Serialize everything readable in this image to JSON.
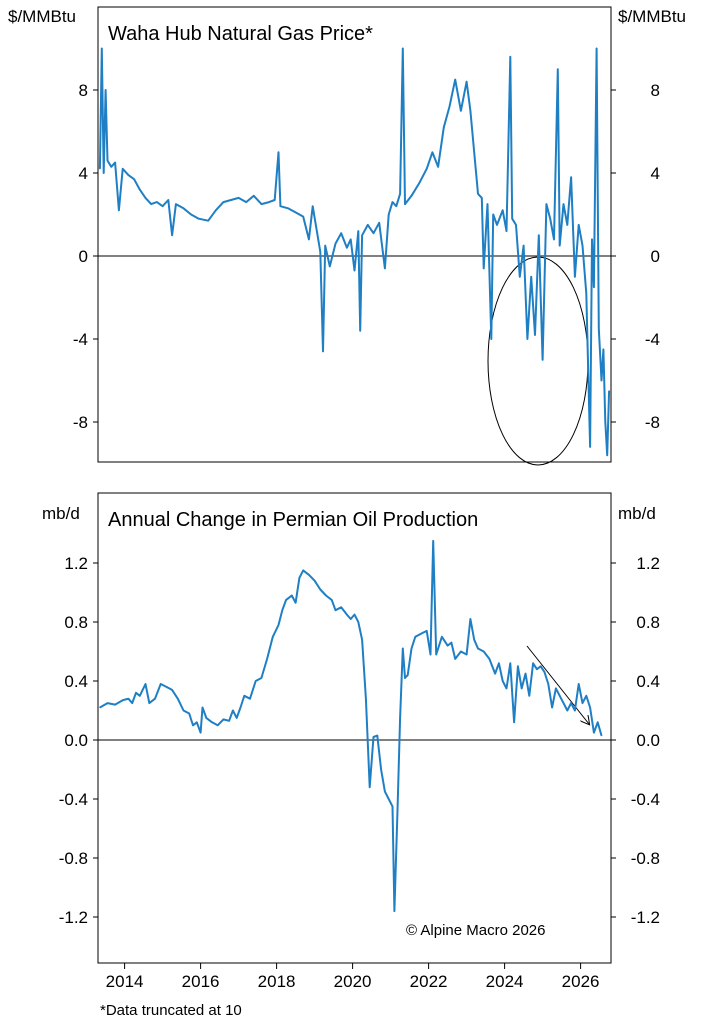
{
  "footnote": "*Data truncated at 10",
  "copyright": "© Alpine Macro 2026",
  "colors": {
    "series": "#1f7fc4",
    "axis": "#000000"
  },
  "chart_data": [
    {
      "type": "line",
      "title": "Waha Hub Natural Gas Price*",
      "unit_left": "$/MMBtu",
      "unit_right": "$/MMBtu",
      "ylim": [
        -10,
        10
      ],
      "xlim": [
        2013.3,
        2026.8
      ],
      "yticks": [
        8,
        4,
        0,
        -4,
        -8
      ],
      "ytick_labels": [
        "8",
        "4",
        "0",
        "-4",
        "-8"
      ],
      "zero_line": true,
      "annotation": "ellipse highlighting 2024-2026 negative prices",
      "series": [
        {
          "points": [
            [
              2013.35,
              4.2
            ],
            [
              2013.4,
              10.0
            ],
            [
              2013.45,
              4.0
            ],
            [
              2013.5,
              8.0
            ],
            [
              2013.55,
              4.6
            ],
            [
              2013.65,
              4.3
            ],
            [
              2013.75,
              4.5
            ],
            [
              2013.85,
              2.2
            ],
            [
              2013.95,
              4.2
            ],
            [
              2014.1,
              3.9
            ],
            [
              2014.25,
              3.7
            ],
            [
              2014.4,
              3.2
            ],
            [
              2014.55,
              2.8
            ],
            [
              2014.7,
              2.5
            ],
            [
              2014.85,
              2.6
            ],
            [
              2015.0,
              2.4
            ],
            [
              2015.15,
              2.7
            ],
            [
              2015.25,
              1.0
            ],
            [
              2015.35,
              2.5
            ],
            [
              2015.55,
              2.3
            ],
            [
              2015.75,
              2.0
            ],
            [
              2015.95,
              1.8
            ],
            [
              2016.2,
              1.7
            ],
            [
              2016.4,
              2.2
            ],
            [
              2016.6,
              2.6
            ],
            [
              2016.8,
              2.7
            ],
            [
              2017.0,
              2.8
            ],
            [
              2017.2,
              2.6
            ],
            [
              2017.4,
              2.9
            ],
            [
              2017.6,
              2.5
            ],
            [
              2017.8,
              2.6
            ],
            [
              2017.95,
              2.7
            ],
            [
              2018.05,
              5.0
            ],
            [
              2018.1,
              2.4
            ],
            [
              2018.3,
              2.3
            ],
            [
              2018.5,
              2.1
            ],
            [
              2018.7,
              1.9
            ],
            [
              2018.85,
              0.8
            ],
            [
              2018.95,
              2.4
            ],
            [
              2019.05,
              1.3
            ],
            [
              2019.15,
              0.2
            ],
            [
              2019.22,
              -4.6
            ],
            [
              2019.28,
              0.5
            ],
            [
              2019.4,
              -0.5
            ],
            [
              2019.55,
              0.6
            ],
            [
              2019.7,
              1.1
            ],
            [
              2019.85,
              0.4
            ],
            [
              2019.95,
              0.8
            ],
            [
              2020.05,
              -0.7
            ],
            [
              2020.15,
              1.2
            ],
            [
              2020.2,
              -3.6
            ],
            [
              2020.25,
              1.0
            ],
            [
              2020.4,
              1.5
            ],
            [
              2020.55,
              1.1
            ],
            [
              2020.7,
              1.6
            ],
            [
              2020.85,
              -0.6
            ],
            [
              2020.95,
              2.0
            ],
            [
              2021.05,
              2.6
            ],
            [
              2021.15,
              2.4
            ],
            [
              2021.25,
              3.0
            ],
            [
              2021.32,
              10.0
            ],
            [
              2021.38,
              2.5
            ],
            [
              2021.55,
              2.9
            ],
            [
              2021.75,
              3.5
            ],
            [
              2021.95,
              4.2
            ],
            [
              2022.1,
              5.0
            ],
            [
              2022.25,
              4.3
            ],
            [
              2022.4,
              6.2
            ],
            [
              2022.55,
              7.2
            ],
            [
              2022.7,
              8.5
            ],
            [
              2022.85,
              7.0
            ],
            [
              2023.0,
              8.4
            ],
            [
              2023.1,
              7.0
            ],
            [
              2023.2,
              5.0
            ],
            [
              2023.3,
              3.0
            ],
            [
              2023.4,
              2.8
            ],
            [
              2023.45,
              -0.6
            ],
            [
              2023.55,
              2.5
            ],
            [
              2023.65,
              -4.0
            ],
            [
              2023.7,
              2.0
            ],
            [
              2023.8,
              1.5
            ],
            [
              2023.95,
              2.2
            ],
            [
              2024.05,
              1.2
            ],
            [
              2024.15,
              9.6
            ],
            [
              2024.2,
              1.8
            ],
            [
              2024.3,
              1.5
            ],
            [
              2024.4,
              -1.0
            ],
            [
              2024.5,
              0.5
            ],
            [
              2024.6,
              -4.0
            ],
            [
              2024.7,
              -1.0
            ],
            [
              2024.8,
              -3.8
            ],
            [
              2024.9,
              1.0
            ],
            [
              2025.0,
              -5.0
            ],
            [
              2025.1,
              2.5
            ],
            [
              2025.2,
              1.8
            ],
            [
              2025.3,
              0.8
            ],
            [
              2025.4,
              9.0
            ],
            [
              2025.45,
              0.5
            ],
            [
              2025.55,
              2.5
            ],
            [
              2025.65,
              1.5
            ],
            [
              2025.75,
              3.8
            ],
            [
              2025.85,
              -1.0
            ],
            [
              2025.95,
              1.5
            ],
            [
              2026.05,
              0.5
            ],
            [
              2026.15,
              -1.8
            ],
            [
              2026.25,
              -9.2
            ],
            [
              2026.3,
              0.8
            ],
            [
              2026.35,
              -1.5
            ],
            [
              2026.42,
              10.0
            ],
            [
              2026.48,
              -3.5
            ],
            [
              2026.55,
              -6.0
            ],
            [
              2026.6,
              -4.5
            ],
            [
              2026.65,
              -8.0
            ],
            [
              2026.7,
              -9.6
            ],
            [
              2026.75,
              -6.5
            ]
          ]
        }
      ]
    },
    {
      "type": "line",
      "title": "Annual Change in Permian Oil Production",
      "unit_left": "mb/d",
      "unit_right": "mb/d",
      "ylim": [
        -1.5,
        1.5
      ],
      "xlim": [
        2013.3,
        2026.8
      ],
      "yticks": [
        1.2,
        0.8,
        0.4,
        0.0,
        -0.4,
        -0.8,
        -1.2
      ],
      "ytick_labels": [
        "1.2",
        "0.8",
        "0.4",
        "0.0",
        "-0.4",
        "-0.8",
        "-1.2"
      ],
      "x_tick_labels": [
        "2014",
        "2016",
        "2018",
        "2020",
        "2022",
        "2024",
        "2026"
      ],
      "x_ticks": [
        2014,
        2016,
        2018,
        2020,
        2022,
        2024,
        2026
      ],
      "zero_line": true,
      "annotation": "downward arrow indicating declining trend",
      "series": [
        {
          "points": [
            [
              2013.35,
              0.22
            ],
            [
              2013.55,
              0.25
            ],
            [
              2013.75,
              0.24
            ],
            [
              2013.95,
              0.27
            ],
            [
              2014.1,
              0.28
            ],
            [
              2014.2,
              0.25
            ],
            [
              2014.3,
              0.32
            ],
            [
              2014.4,
              0.3
            ],
            [
              2014.55,
              0.38
            ],
            [
              2014.65,
              0.25
            ],
            [
              2014.8,
              0.28
            ],
            [
              2014.95,
              0.38
            ],
            [
              2015.1,
              0.36
            ],
            [
              2015.25,
              0.34
            ],
            [
              2015.4,
              0.28
            ],
            [
              2015.55,
              0.2
            ],
            [
              2015.7,
              0.18
            ],
            [
              2015.8,
              0.1
            ],
            [
              2015.9,
              0.12
            ],
            [
              2016.0,
              0.05
            ],
            [
              2016.05,
              0.22
            ],
            [
              2016.15,
              0.15
            ],
            [
              2016.3,
              0.12
            ],
            [
              2016.45,
              0.1
            ],
            [
              2016.6,
              0.14
            ],
            [
              2016.75,
              0.13
            ],
            [
              2016.85,
              0.2
            ],
            [
              2016.95,
              0.15
            ],
            [
              2017.05,
              0.22
            ],
            [
              2017.15,
              0.3
            ],
            [
              2017.3,
              0.28
            ],
            [
              2017.45,
              0.4
            ],
            [
              2017.6,
              0.42
            ],
            [
              2017.75,
              0.55
            ],
            [
              2017.9,
              0.7
            ],
            [
              2018.05,
              0.78
            ],
            [
              2018.15,
              0.88
            ],
            [
              2018.25,
              0.95
            ],
            [
              2018.4,
              0.98
            ],
            [
              2018.5,
              0.93
            ],
            [
              2018.6,
              1.1
            ],
            [
              2018.7,
              1.15
            ],
            [
              2018.85,
              1.12
            ],
            [
              2019.0,
              1.08
            ],
            [
              2019.15,
              1.02
            ],
            [
              2019.3,
              0.98
            ],
            [
              2019.45,
              0.95
            ],
            [
              2019.55,
              0.88
            ],
            [
              2019.7,
              0.9
            ],
            [
              2019.85,
              0.85
            ],
            [
              2019.95,
              0.82
            ],
            [
              2020.05,
              0.85
            ],
            [
              2020.15,
              0.8
            ],
            [
              2020.25,
              0.68
            ],
            [
              2020.35,
              0.28
            ],
            [
              2020.45,
              -0.32
            ],
            [
              2020.55,
              0.02
            ],
            [
              2020.65,
              0.03
            ],
            [
              2020.75,
              -0.2
            ],
            [
              2020.85,
              -0.35
            ],
            [
              2020.95,
              -0.4
            ],
            [
              2021.05,
              -0.45
            ],
            [
              2021.1,
              -1.16
            ],
            [
              2021.18,
              -0.5
            ],
            [
              2021.25,
              0.15
            ],
            [
              2021.32,
              0.62
            ],
            [
              2021.38,
              0.42
            ],
            [
              2021.45,
              0.44
            ],
            [
              2021.55,
              0.62
            ],
            [
              2021.65,
              0.7
            ],
            [
              2021.8,
              0.72
            ],
            [
              2021.95,
              0.74
            ],
            [
              2022.05,
              0.58
            ],
            [
              2022.12,
              1.35
            ],
            [
              2022.2,
              0.58
            ],
            [
              2022.35,
              0.7
            ],
            [
              2022.5,
              0.64
            ],
            [
              2022.6,
              0.66
            ],
            [
              2022.7,
              0.55
            ],
            [
              2022.85,
              0.6
            ],
            [
              2023.0,
              0.58
            ],
            [
              2023.1,
              0.82
            ],
            [
              2023.2,
              0.68
            ],
            [
              2023.3,
              0.62
            ],
            [
              2023.45,
              0.6
            ],
            [
              2023.6,
              0.55
            ],
            [
              2023.75,
              0.45
            ],
            [
              2023.85,
              0.52
            ],
            [
              2023.95,
              0.4
            ],
            [
              2024.05,
              0.35
            ],
            [
              2024.15,
              0.52
            ],
            [
              2024.25,
              0.12
            ],
            [
              2024.35,
              0.5
            ],
            [
              2024.45,
              0.35
            ],
            [
              2024.55,
              0.45
            ],
            [
              2024.65,
              0.3
            ],
            [
              2024.75,
              0.52
            ],
            [
              2024.85,
              0.48
            ],
            [
              2024.95,
              0.5
            ],
            [
              2025.05,
              0.46
            ],
            [
              2025.15,
              0.38
            ],
            [
              2025.25,
              0.22
            ],
            [
              2025.35,
              0.35
            ],
            [
              2025.45,
              0.3
            ],
            [
              2025.55,
              0.25
            ],
            [
              2025.65,
              0.2
            ],
            [
              2025.75,
              0.25
            ],
            [
              2025.85,
              0.2
            ],
            [
              2025.95,
              0.38
            ],
            [
              2026.05,
              0.25
            ],
            [
              2026.15,
              0.3
            ],
            [
              2026.25,
              0.22
            ],
            [
              2026.35,
              0.05
            ],
            [
              2026.45,
              0.12
            ],
            [
              2026.55,
              0.03
            ]
          ]
        }
      ]
    }
  ]
}
